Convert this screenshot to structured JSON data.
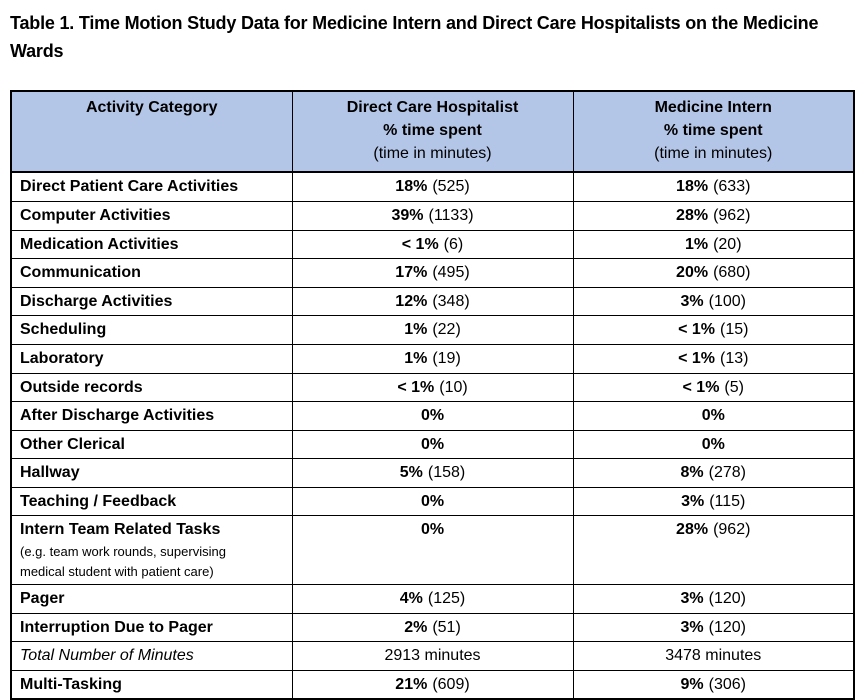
{
  "caption": "Table 1. Time Motion Study Data for Medicine Intern and Direct Care Hospitalists on the Medicine Wards",
  "colors": {
    "header_bg": "#b4c6e7",
    "border": "#000000",
    "text": "#000000"
  },
  "table": {
    "header": {
      "activity": "Activity Category",
      "dch": {
        "title": "Direct Care Hospitalist",
        "line2": "% time spent",
        "line3": "(time in minutes)"
      },
      "intern": {
        "title": "Medicine Intern",
        "line2": "% time spent",
        "line3": "(time in minutes)"
      }
    },
    "rows": [
      {
        "activity": "Direct Patient Care Activities",
        "note": "",
        "dch_pct": "18%",
        "dch_min": "(525)",
        "mi_pct": "18%",
        "mi_min": "(633)",
        "italic": false
      },
      {
        "activity": "Computer Activities",
        "note": "",
        "dch_pct": "39%",
        "dch_min": "(1133)",
        "mi_pct": "28%",
        "mi_min": "(962)",
        "italic": false
      },
      {
        "activity": "Medication Activities",
        "note": "",
        "dch_pct": "< 1%",
        "dch_min": "(6)",
        "mi_pct": "1%",
        "mi_min": "(20)",
        "italic": false
      },
      {
        "activity": "Communication",
        "note": "",
        "dch_pct": "17%",
        "dch_min": "(495)",
        "mi_pct": "20%",
        "mi_min": "(680)",
        "italic": false
      },
      {
        "activity": "Discharge Activities",
        "note": "",
        "dch_pct": "12%",
        "dch_min": "(348)",
        "mi_pct": "3%",
        "mi_min": "(100)",
        "italic": false
      },
      {
        "activity": "Scheduling",
        "note": "",
        "dch_pct": "1%",
        "dch_min": "(22)",
        "mi_pct": "< 1%",
        "mi_min": "(15)",
        "italic": false
      },
      {
        "activity": "Laboratory",
        "note": "",
        "dch_pct": "1%",
        "dch_min": "(19)",
        "mi_pct": "< 1%",
        "mi_min": "(13)",
        "italic": false
      },
      {
        "activity": "Outside records",
        "note": "",
        "dch_pct": "< 1%",
        "dch_min": "(10)",
        "mi_pct": "< 1%",
        "mi_min": "(5)",
        "italic": false
      },
      {
        "activity": "After Discharge Activities",
        "note": "",
        "dch_pct": "0%",
        "dch_min": "",
        "mi_pct": "0%",
        "mi_min": "",
        "italic": false
      },
      {
        "activity": "Other Clerical",
        "note": "",
        "dch_pct": "0%",
        "dch_min": "",
        "mi_pct": "0%",
        "mi_min": "",
        "italic": false
      },
      {
        "activity": "Hallway",
        "note": "",
        "dch_pct": "5%",
        "dch_min": "(158)",
        "mi_pct": "8%",
        "mi_min": "(278)",
        "italic": false
      },
      {
        "activity": "Teaching / Feedback",
        "note": "",
        "dch_pct": "0%",
        "dch_min": "",
        "mi_pct": "3%",
        "mi_min": "(115)",
        "italic": false
      },
      {
        "activity": "Intern Team Related Tasks",
        "note": "(e.g. team work rounds, supervising medical student with patient care)",
        "dch_pct": "0%",
        "dch_min": "",
        "mi_pct": "28%",
        "mi_min": "(962)",
        "italic": false
      },
      {
        "activity": "Pager",
        "note": "",
        "dch_pct": "4%",
        "dch_min": "(125)",
        "mi_pct": "3%",
        "mi_min": "(120)",
        "italic": false
      },
      {
        "activity": "Interruption Due to Pager",
        "note": "",
        "dch_pct": "2%",
        "dch_min": "(51)",
        "mi_pct": "3%",
        "mi_min": "(120)",
        "italic": false
      },
      {
        "activity": "Total Number of Minutes",
        "note": "",
        "dch_pct": "",
        "dch_min": "2913 minutes",
        "mi_pct": "",
        "mi_min": "3478 minutes",
        "italic": true
      },
      {
        "activity": "Multi-Tasking",
        "note": "",
        "dch_pct": "21%",
        "dch_min": "(609)",
        "mi_pct": "9%",
        "mi_min": "(306)",
        "italic": false
      }
    ]
  }
}
